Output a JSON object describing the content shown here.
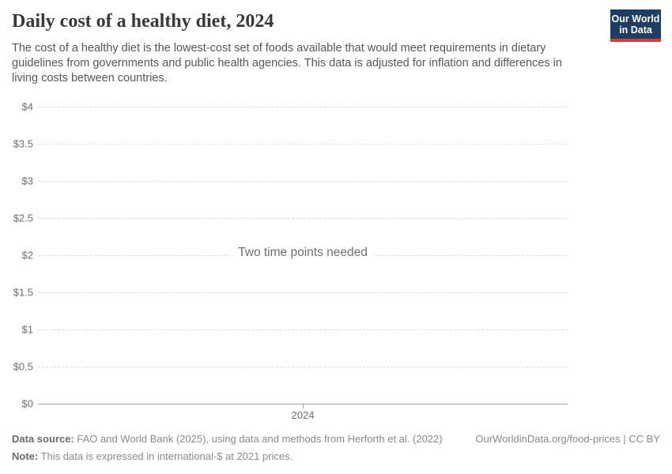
{
  "header": {
    "title": "Daily cost of a healthy diet, 2024",
    "subtitle": "The cost of a healthy diet is the lowest-cost set of foods available that would meet requirements in dietary guidelines from governments and public health agencies. This data is adjusted for inflation and differences in living costs between countries.",
    "logo": {
      "line1": "Our World",
      "line2": "in Data",
      "bg_color": "#1d3d63",
      "stripe_color": "#dc3a32"
    }
  },
  "chart_data": {
    "type": "line",
    "title": "Daily cost of a healthy diet, 2024",
    "message": "Two time points needed",
    "series": [],
    "xlabel": "",
    "ylabel": "",
    "ylim": [
      0,
      4
    ],
    "ytick_values": [
      4,
      3.5,
      3,
      2.5,
      2,
      1.5,
      1,
      0.5,
      0
    ],
    "ytick_labels": [
      "$4",
      "$3.5",
      "$3",
      "$2.5",
      "$2",
      "$1.5",
      "$1",
      "$0.5",
      "$0"
    ],
    "xtick_labels": [
      "2024"
    ],
    "grid": "horizontal-dashed",
    "legend": "none",
    "colors": {
      "gridline": "#dedede",
      "axis_line": "#a5a5a5",
      "tick_text": "#6e6e6e"
    }
  },
  "footer": {
    "data_source_label": "Data source:",
    "data_source_text": " FAO and World Bank (2025), using data and methods from Herforth et al. (2022)",
    "note_label": "Note:",
    "note_text": " This data is expressed in international-$ at 2021 prices.",
    "attribution": "OurWorldinData.org/food-prices | CC BY"
  }
}
